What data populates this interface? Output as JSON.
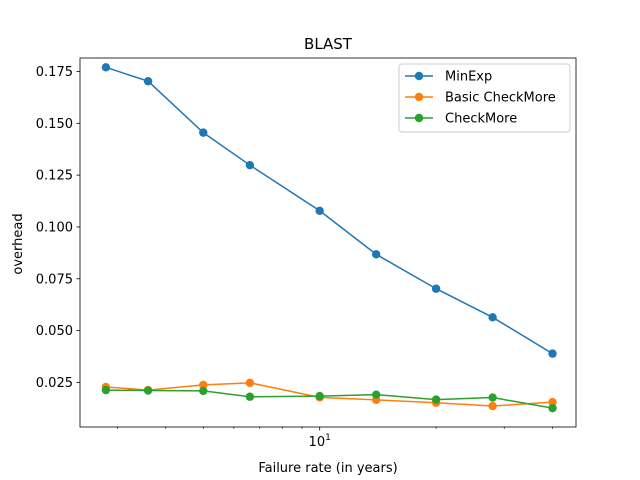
{
  "chart_data": {
    "type": "line",
    "title": "BLAST",
    "xlabel": "Failure rate (in years)",
    "ylabel": "overhead",
    "x_scale": "log",
    "x": [
      2.8,
      3.6,
      5.0,
      6.6,
      10.0,
      14.0,
      20.0,
      28.0,
      40.0
    ],
    "xlim": [
      2.4,
      46.0
    ],
    "ylim": [
      0.0035,
      0.1815
    ],
    "x_ticks": [
      {
        "value": 10,
        "base": "10",
        "exp": "1"
      }
    ],
    "x_minor_ticks": [
      3,
      4,
      5,
      6,
      7,
      8,
      9,
      20,
      30,
      40
    ],
    "y_ticks": [
      {
        "value": 0.025,
        "label": "0.025"
      },
      {
        "value": 0.05,
        "label": "0.050"
      },
      {
        "value": 0.075,
        "label": "0.075"
      },
      {
        "value": 0.1,
        "label": "0.100"
      },
      {
        "value": 0.125,
        "label": "0.125"
      },
      {
        "value": 0.15,
        "label": "0.150"
      },
      {
        "value": 0.175,
        "label": "0.175"
      }
    ],
    "grid": false,
    "legend_position": "top-right",
    "series": [
      {
        "name": "MinExp",
        "color": "#1f77b4",
        "values": [
          0.177,
          0.1703,
          0.1455,
          0.1298,
          0.1078,
          0.0868,
          0.0702,
          0.0564,
          0.0389
        ]
      },
      {
        "name": "Basic CheckMore",
        "color": "#ff7f0e",
        "values": [
          0.0228,
          0.0213,
          0.0238,
          0.0248,
          0.0178,
          0.0166,
          0.0152,
          0.0136,
          0.0155
        ]
      },
      {
        "name": "CheckMore",
        "color": "#2ca02c",
        "values": [
          0.0213,
          0.0211,
          0.0209,
          0.0181,
          0.0184,
          0.0191,
          0.0167,
          0.0177,
          0.0126
        ]
      }
    ]
  }
}
